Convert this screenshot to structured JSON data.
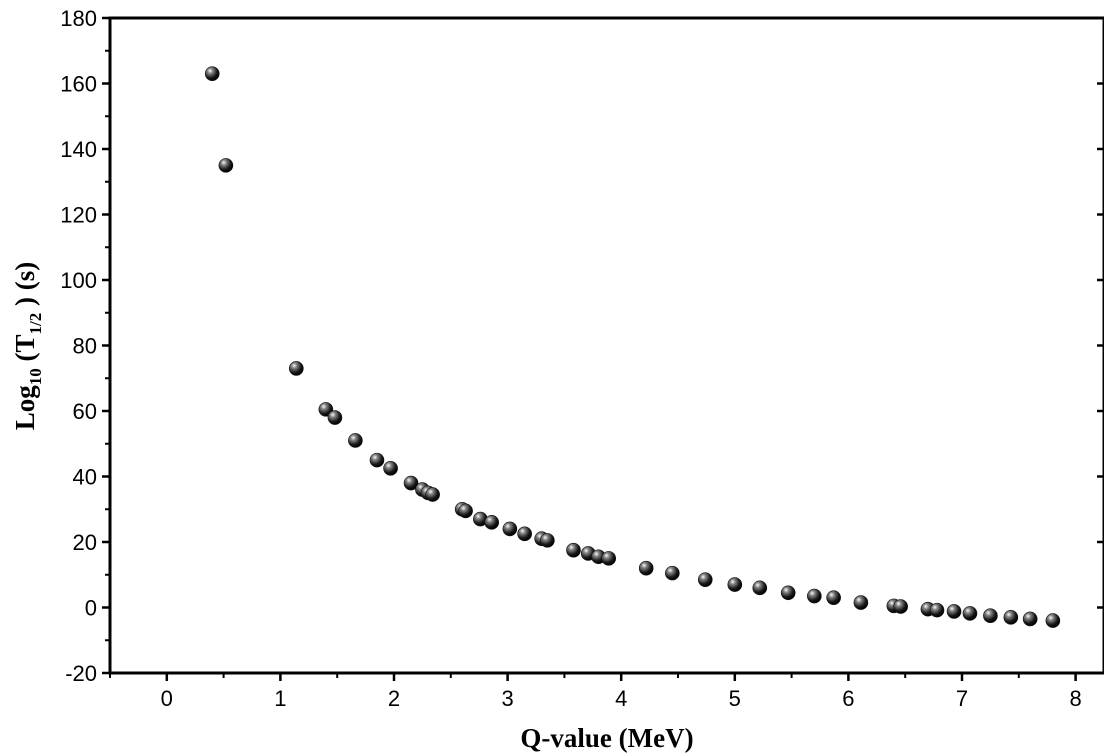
{
  "chart_data": {
    "type": "scatter",
    "title": "",
    "xlabel": "Q-value (MeV)",
    "ylabel": {
      "prefix": "Log",
      "sub1": "10",
      "mid": " (T",
      "sub2": "1/2",
      "suffix": " ) (s)"
    },
    "xlim": [
      -0.5,
      8.25
    ],
    "ylim": [
      -20,
      180
    ],
    "xticks": [
      0,
      1,
      2,
      3,
      4,
      5,
      6,
      7,
      8
    ],
    "yticks": [
      -20,
      0,
      20,
      40,
      60,
      80,
      100,
      120,
      140,
      160,
      180
    ],
    "grid": false,
    "legend": "none",
    "marker_color": "#111111",
    "series": [
      {
        "x": [
          0.4,
          0.52,
          1.14,
          1.4,
          1.48,
          1.66,
          1.85,
          1.97,
          2.15,
          2.25,
          2.3,
          2.34,
          2.6,
          2.63,
          2.76,
          2.86,
          3.02,
          3.15,
          3.3,
          3.35,
          3.58,
          3.71,
          3.8,
          3.89,
          4.22,
          4.45,
          4.74,
          5.0,
          5.22,
          5.47,
          5.7,
          5.87,
          6.11,
          6.4,
          6.46,
          6.7,
          6.78,
          6.93,
          7.07,
          7.25,
          7.43,
          7.6,
          7.8
        ],
        "y": [
          163,
          135,
          73,
          60.5,
          58,
          51,
          45,
          42.5,
          38,
          36,
          35,
          34.5,
          30,
          29.5,
          27,
          26,
          24,
          22.5,
          21,
          20.5,
          17.5,
          16.5,
          15.5,
          15,
          12,
          10.5,
          8.5,
          7,
          6,
          4.5,
          3.5,
          3,
          1.5,
          0.5,
          0.3,
          -0.5,
          -0.8,
          -1.2,
          -1.8,
          -2.5,
          -3,
          -3.5,
          -4
        ]
      }
    ]
  }
}
